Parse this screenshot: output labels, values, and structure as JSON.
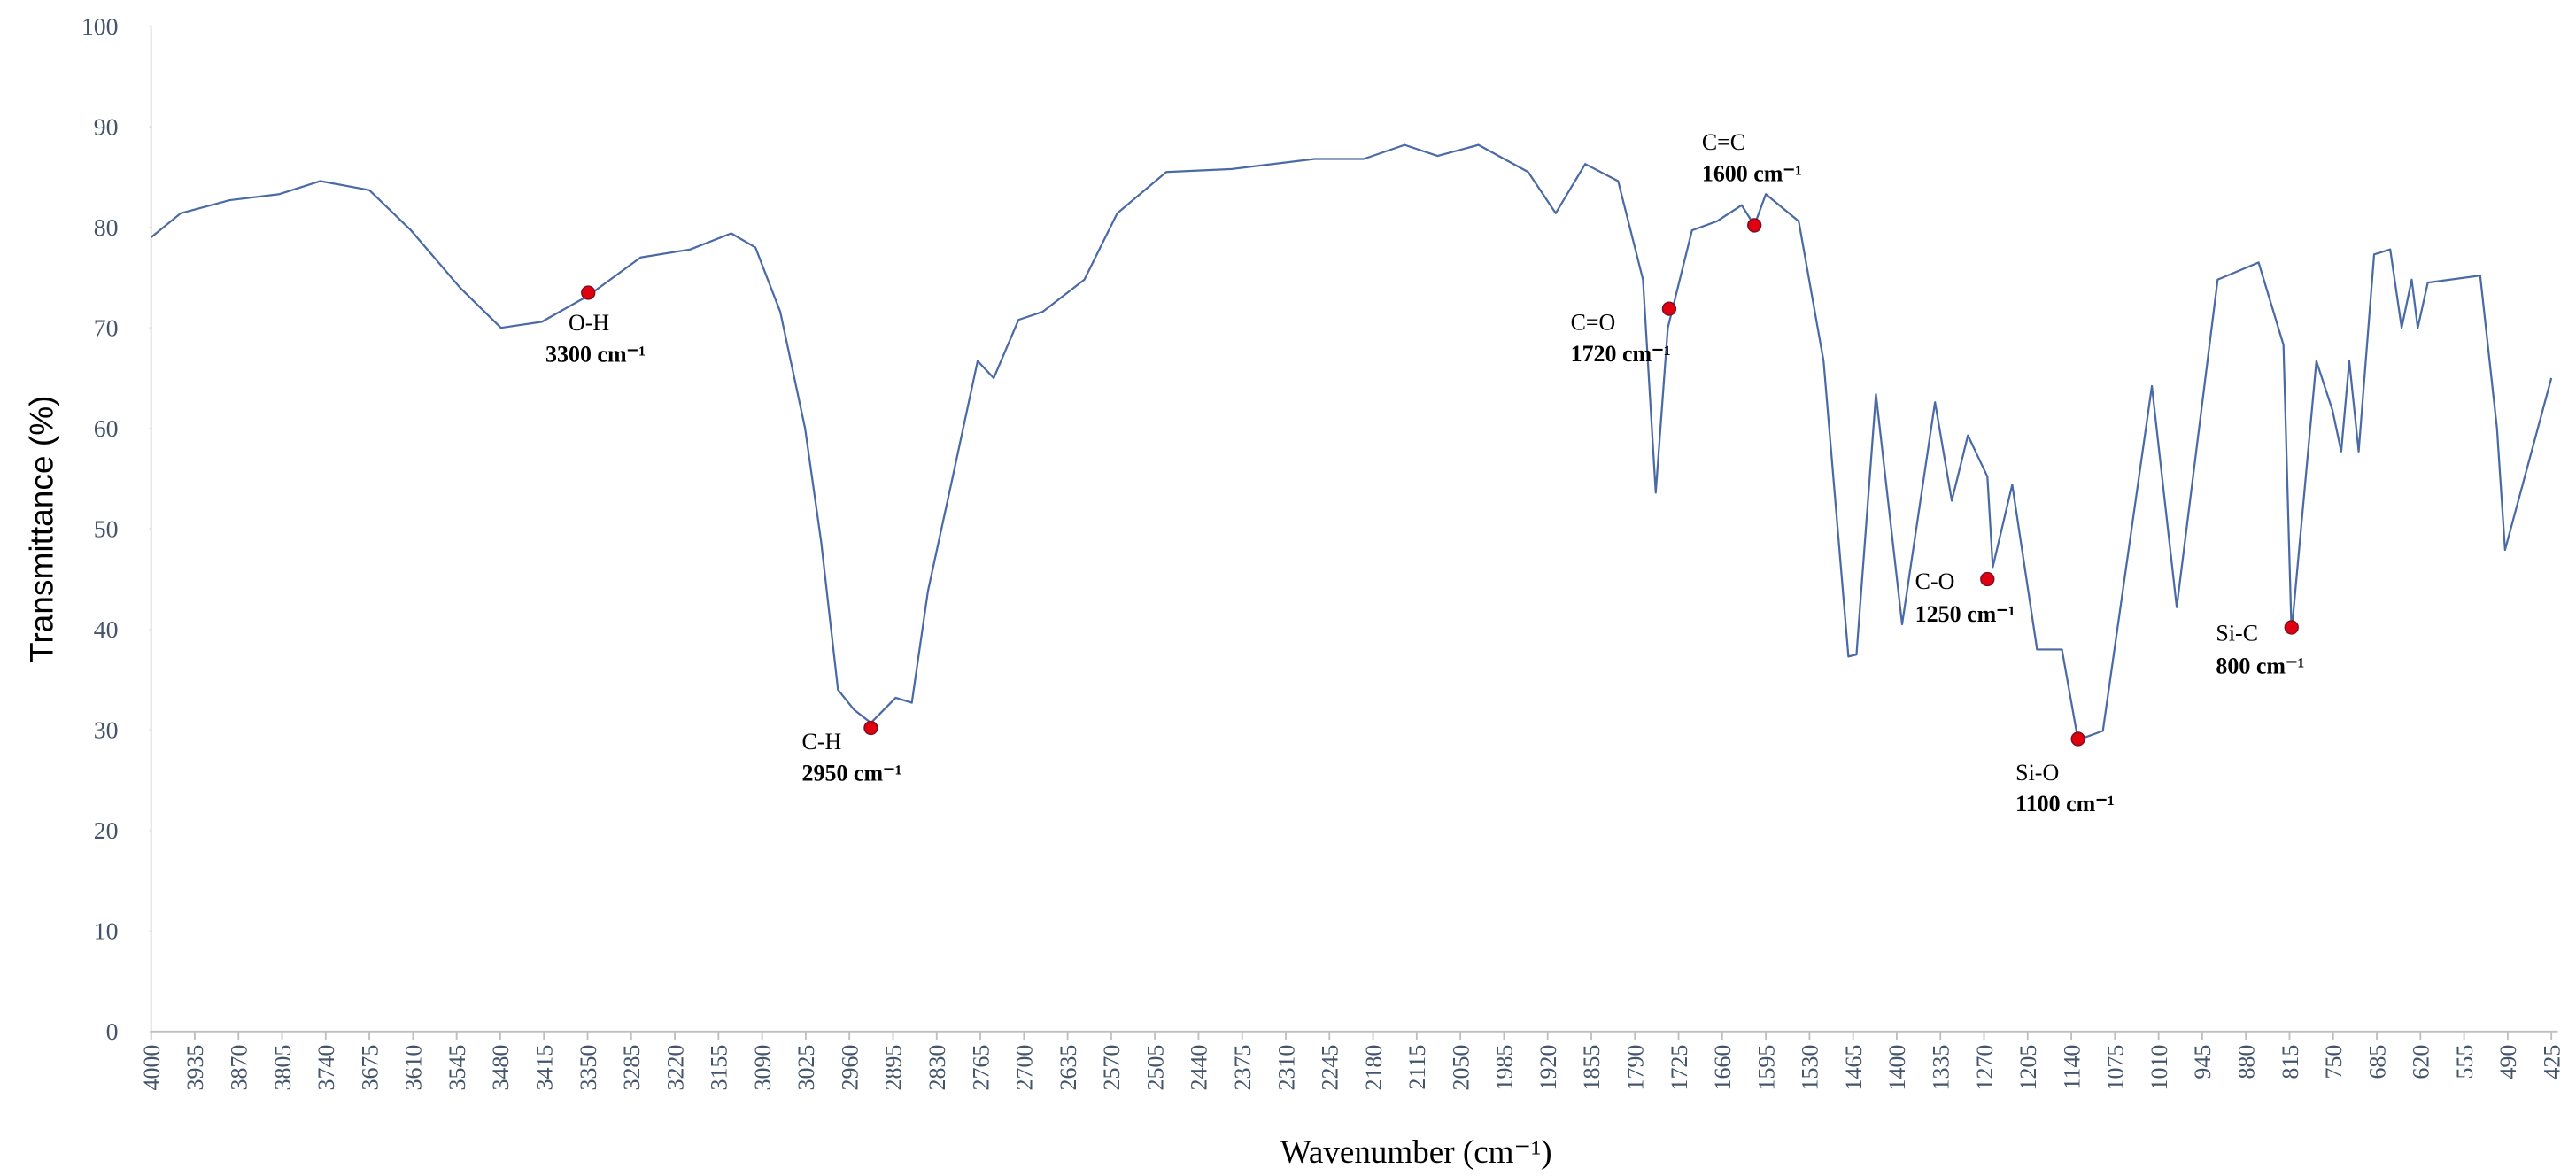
{
  "chart_data": {
    "type": "line",
    "xlabel": "Wavenumber (cm⁻¹)",
    "ylabel": "Transmittance (%)",
    "xlim": [
      4000,
      425
    ],
    "ylim": [
      0,
      100
    ],
    "xticks": [
      4000,
      3935,
      3870,
      3805,
      3740,
      3675,
      3610,
      3545,
      3480,
      3415,
      3350,
      3285,
      3220,
      3155,
      3090,
      3025,
      2960,
      2895,
      2830,
      2765,
      2700,
      2635,
      2570,
      2505,
      2440,
      2375,
      2310,
      2245,
      2180,
      2115,
      2050,
      1985,
      1920,
      1855,
      1790,
      1725,
      1660,
      1595,
      1530,
      1465,
      1400,
      1335,
      1270,
      1205,
      1140,
      1075,
      1010,
      945,
      880,
      815,
      750,
      685,
      620,
      555,
      490,
      425
    ],
    "yticks": [
      0,
      10,
      20,
      30,
      40,
      50,
      60,
      70,
      80,
      90,
      100
    ],
    "x": [
      4000,
      3956,
      3883,
      3809,
      3748,
      3675,
      3613,
      3540,
      3479,
      3418,
      3349,
      3271,
      3197,
      3136,
      3100,
      3063,
      3026,
      3002,
      2977,
      2953,
      2928,
      2891,
      2867,
      2843,
      2806,
      2769,
      2745,
      2708,
      2672,
      2610,
      2561,
      2488,
      2390,
      2267,
      2194,
      2133,
      2084,
      2023,
      1949,
      1908,
      1864,
      1815,
      1778,
      1759,
      1741,
      1705,
      1668,
      1631,
      1612,
      1595,
      1546,
      1509,
      1472,
      1460,
      1431,
      1392,
      1343,
      1318,
      1294,
      1265,
      1257,
      1228,
      1191,
      1154,
      1130,
      1093,
      1020,
      983,
      922,
      861,
      824,
      812,
      775,
      751,
      738,
      726,
      712,
      689,
      665,
      648,
      633,
      624,
      609,
      531,
      506,
      494,
      425
    ],
    "series": [
      {
        "color": "#4a6aa5",
        "values": [
          79,
          81.4,
          82.7,
          83.3,
          84.6,
          83.7,
          79.7,
          74,
          70,
          70.6,
          73.2,
          77,
          77.8,
          79.4,
          78,
          71.6,
          60,
          48.7,
          34,
          32,
          30.7,
          33.2,
          32.7,
          43.8,
          55.2,
          66.7,
          65,
          70.8,
          71.6,
          74.8,
          81.4,
          85.5,
          85.8,
          86.8,
          86.8,
          88.2,
          87.1,
          88.2,
          85.5,
          81.4,
          86.3,
          84.6,
          74.8,
          53.6,
          70,
          79.7,
          80.6,
          82.2,
          80.2,
          83.3,
          80.6,
          66.7,
          37.3,
          37.5,
          63.4,
          40.5,
          62.6,
          52.8,
          59.3,
          55.2,
          46.2,
          54.4,
          38,
          38,
          29,
          29.9,
          64.2,
          42.2,
          74.8,
          76.5,
          68.3,
          39.7,
          66.7,
          61.8,
          57.7,
          66.7,
          57.7,
          77.3,
          77.8,
          70,
          74.8,
          70,
          74.5,
          75.2,
          60,
          47.9,
          65
        ]
      }
    ],
    "annotations": [
      {
        "label": "O-H",
        "sublabel": "3300 cm⁻¹",
        "x": 3349,
        "y": 73.5
      },
      {
        "label": "C-H",
        "sublabel": "2950 cm⁻¹",
        "x": 2928,
        "y": 30.2
      },
      {
        "label": "C=O",
        "sublabel": "1720 cm⁻¹",
        "x": 1739,
        "y": 71.9
      },
      {
        "label": "C=C",
        "sublabel": "1600 cm⁻¹",
        "x": 1612,
        "y": 80.2
      },
      {
        "label": "C-O",
        "sublabel": "1250 cm⁻¹",
        "x": 1265,
        "y": 45
      },
      {
        "label": "Si-O",
        "sublabel": "1100 cm⁻¹",
        "x": 1130,
        "y": 29.1
      },
      {
        "label": "Si-C",
        "sublabel": "800 cm⁻¹",
        "x": 812,
        "y": 40.2
      }
    ]
  }
}
